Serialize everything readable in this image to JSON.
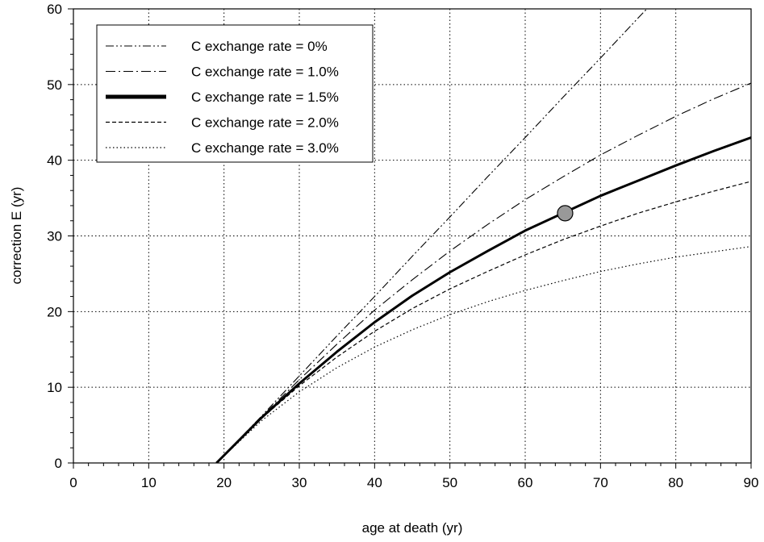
{
  "chart_data": {
    "type": "line",
    "title": "",
    "xlabel": "age at death (yr)",
    "ylabel": "correction E (yr)",
    "xlim": [
      0,
      90
    ],
    "ylim": [
      0,
      60
    ],
    "xticks": [
      0,
      10,
      20,
      30,
      40,
      50,
      60,
      70,
      80,
      90
    ],
    "yticks": [
      0,
      10,
      20,
      30,
      40,
      50,
      60
    ],
    "grid": true,
    "legend_position": "top-left",
    "series": [
      {
        "name": "C exchange rate = 0%",
        "style": "dash-dot-dot",
        "x": [
          19,
          25,
          30,
          35,
          40,
          45,
          50,
          55,
          60,
          65,
          70,
          75,
          80
        ],
        "y": [
          0,
          6.2,
          11.5,
          16.8,
          22.0,
          27.3,
          32.5,
          37.8,
          43.0,
          48.3,
          53.5,
          58.8,
          64.0
        ]
      },
      {
        "name": "C exchange rate = 1.0%",
        "style": "dash-dot",
        "x": [
          19,
          25,
          30,
          35,
          40,
          45,
          50,
          55,
          60,
          65,
          70,
          75,
          80,
          85,
          90
        ],
        "y": [
          0,
          6.1,
          11.0,
          15.7,
          20.2,
          24.2,
          28.0,
          31.5,
          34.8,
          37.8,
          40.7,
          43.3,
          45.8,
          48.1,
          50.2
        ]
      },
      {
        "name": "C exchange rate = 1.5%",
        "style": "solid-thick",
        "x": [
          19,
          25,
          30,
          35,
          40,
          45,
          50,
          55,
          60,
          65,
          70,
          75,
          80,
          85,
          90
        ],
        "y": [
          0,
          6.0,
          10.5,
          14.7,
          18.6,
          22.1,
          25.2,
          28.0,
          30.7,
          33.0,
          35.3,
          37.3,
          39.3,
          41.2,
          43.0
        ]
      },
      {
        "name": "C exchange rate = 2.0%",
        "style": "dashed",
        "x": [
          19,
          25,
          30,
          35,
          40,
          45,
          50,
          55,
          60,
          65,
          70,
          75,
          80,
          85,
          90
        ],
        "y": [
          0,
          5.9,
          10.2,
          14.0,
          17.4,
          20.4,
          23.0,
          25.3,
          27.5,
          29.5,
          31.3,
          33.0,
          34.5,
          35.9,
          37.2
        ]
      },
      {
        "name": "C exchange rate = 3.0%",
        "style": "dotted",
        "x": [
          19,
          25,
          30,
          35,
          40,
          45,
          50,
          55,
          60,
          65,
          70,
          75,
          80,
          85,
          90
        ],
        "y": [
          0,
          5.6,
          9.4,
          12.6,
          15.3,
          17.6,
          19.6,
          21.3,
          22.8,
          24.1,
          25.3,
          26.3,
          27.2,
          27.9,
          28.6
        ]
      }
    ],
    "marker": {
      "x": 65.3,
      "y": 33,
      "color": "#999999"
    }
  }
}
